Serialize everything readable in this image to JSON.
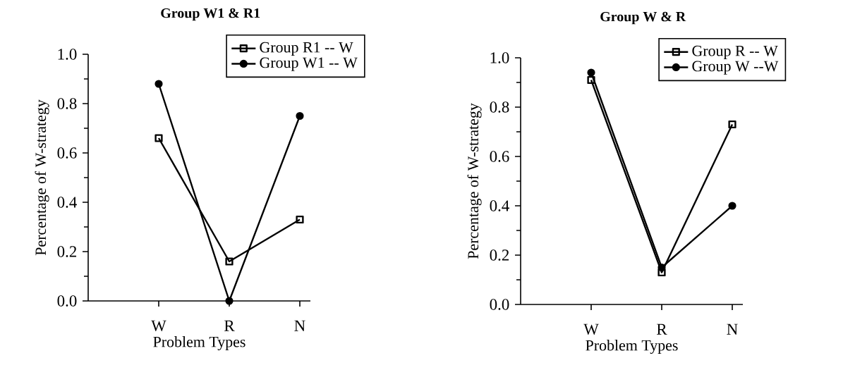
{
  "chart_data": [
    {
      "type": "line",
      "title": "Group W1 & R1",
      "xlabel": "Problem Types",
      "ylabel": "Percentage of W-strategy",
      "categories": [
        "W",
        "R",
        "N"
      ],
      "ylim": [
        0,
        1
      ],
      "yticks": [
        {
          "value": 0,
          "label": "0.0"
        },
        {
          "value": 0.2,
          "label": "0.2"
        },
        {
          "value": 0.4,
          "label": "0.4"
        },
        {
          "value": 0.6,
          "label": "0.6"
        },
        {
          "value": 0.8,
          "label": "0.8"
        },
        {
          "value": 1,
          "label": "1.0"
        }
      ],
      "legend": "top right",
      "line_style": "solid",
      "series": [
        {
          "name": "Group R1 -- W",
          "color": "#000000",
          "marker": "square",
          "values": [
            0.66,
            0.16,
            0.33
          ]
        },
        {
          "name": "Group W1 -- W",
          "color": "#000000",
          "marker": "circle",
          "values": [
            0.88,
            0.0,
            0.75
          ]
        }
      ]
    },
    {
      "type": "line",
      "title": "Group W & R",
      "xlabel": "Problem Types",
      "ylabel": "Percentage of W-strategy",
      "categories": [
        "W",
        "R",
        "N"
      ],
      "ylim": [
        0,
        1
      ],
      "yticks": [
        {
          "value": 0,
          "label": "0.0"
        },
        {
          "value": 0.2,
          "label": "0.2"
        },
        {
          "value": 0.4,
          "label": "0.4"
        },
        {
          "value": 0.6,
          "label": "0.6"
        },
        {
          "value": 0.8,
          "label": "0.8"
        },
        {
          "value": 1,
          "label": "1.0"
        }
      ],
      "legend": "top right",
      "line_style": "solid",
      "series": [
        {
          "name": "Group R -- W",
          "color": "#000000",
          "marker": "square",
          "values": [
            0.91,
            0.13,
            0.73
          ]
        },
        {
          "name": "Group W --W",
          "color": "#000000",
          "marker": "circle",
          "values": [
            0.94,
            0.15,
            0.4
          ]
        }
      ]
    }
  ]
}
